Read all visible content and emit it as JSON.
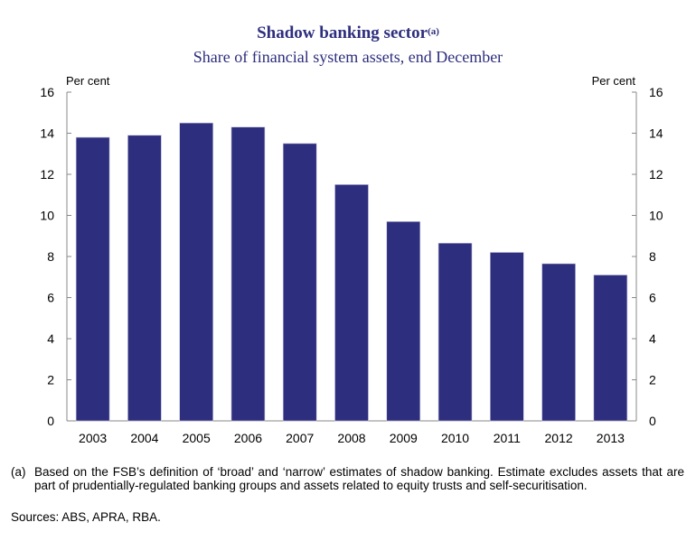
{
  "chart_data": {
    "type": "bar",
    "title": "Shadow banking sector",
    "title_note_marker": "(a)",
    "subtitle": "Share of financial system assets, end December",
    "ylabel_left": "Per cent",
    "ylabel_right": "Per cent",
    "ylim": [
      0,
      16
    ],
    "yticks": [
      0,
      2,
      4,
      6,
      8,
      10,
      12,
      14,
      16
    ],
    "categories": [
      "2003",
      "2004",
      "2005",
      "2006",
      "2007",
      "2008",
      "2009",
      "2010",
      "2011",
      "2012",
      "2013"
    ],
    "values": [
      13.8,
      13.9,
      14.5,
      14.3,
      13.5,
      11.5,
      9.7,
      8.65,
      8.2,
      7.65,
      7.1
    ],
    "bar_color": "#2e2e7e",
    "grid": false,
    "legend": "none"
  },
  "footnote": {
    "label": "(a)",
    "text": "Based on the FSB’s definition of ‘broad’ and ‘narrow’ estimates of shadow banking. Estimate excludes assets that are part of prudentially-regulated banking groups and assets related to equity trusts and self-securitisation."
  },
  "sources": "Sources: ABS, APRA, RBA."
}
